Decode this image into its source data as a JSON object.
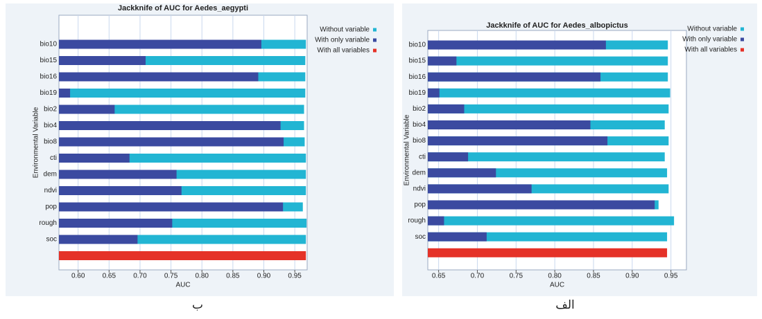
{
  "chart_data": [
    {
      "type": "bar",
      "orientation": "horizontal",
      "title": "Jackknife of AUC for Aedes_aegypti",
      "xlabel": "AUC",
      "ylabel": "Environmental Variable",
      "caption": "ب",
      "categories": [
        "bio10",
        "bio15",
        "bio16",
        "bio19",
        "bio2",
        "bio4",
        "bio8",
        "cti",
        "dem",
        "ndvi",
        "pop",
        "rough",
        "soc",
        null
      ],
      "series": [
        {
          "name": "Without variable",
          "color": "#22b5d3",
          "values": [
            0.968,
            0.967,
            0.967,
            0.967,
            0.965,
            0.965,
            0.966,
            0.968,
            0.968,
            0.968,
            0.963,
            0.969,
            0.968,
            null
          ]
        },
        {
          "name": "With only variable",
          "color": "#3b4aa0",
          "values": [
            0.896,
            0.709,
            0.891,
            0.587,
            0.659,
            0.927,
            0.932,
            0.683,
            0.759,
            0.767,
            0.931,
            0.752,
            0.696,
            null
          ]
        },
        {
          "name": "With all variables",
          "color": "#e53228",
          "values": [
            null,
            null,
            null,
            null,
            null,
            null,
            null,
            null,
            null,
            null,
            null,
            null,
            null,
            0.968
          ]
        }
      ],
      "xlim": [
        0.569,
        0.97
      ],
      "xticks": [
        {
          "value": 0.6,
          "label": "0.60"
        },
        0.65,
        {
          "value": 0.7,
          "label": "0.70"
        },
        0.75,
        {
          "value": 0.8,
          "label": "0.80"
        },
        0.85,
        {
          "value": 0.9,
          "label": "0.90"
        },
        0.95
      ],
      "grid": true,
      "legend": "outside-right"
    },
    {
      "type": "bar",
      "orientation": "horizontal",
      "title": "Jackknife of AUC for Aedes_albopictus",
      "xlabel": "AUC",
      "ylabel": "Environmental Variable",
      "caption": "الف",
      "categories": [
        "bio10",
        "bio15",
        "bio16",
        "bio19",
        "bio2",
        "bio4",
        "bio8",
        "cti",
        "dem",
        "ndvi",
        "pop",
        "rough",
        "soc",
        null
      ],
      "series": [
        {
          "name": "Without variable",
          "color": "#22b5d3",
          "values": [
            0.946,
            0.946,
            0.946,
            0.949,
            0.947,
            0.942,
            0.947,
            0.942,
            0.945,
            0.947,
            0.934,
            0.954,
            0.945,
            null
          ]
        },
        {
          "name": "With only variable",
          "color": "#3b4aa0",
          "values": [
            0.866,
            0.673,
            0.859,
            0.651,
            0.683,
            0.846,
            0.868,
            0.688,
            0.724,
            0.77,
            0.929,
            0.657,
            0.712,
            null
          ]
        },
        {
          "name": "With all variables",
          "color": "#e53228",
          "values": [
            null,
            null,
            null,
            null,
            null,
            null,
            null,
            null,
            null,
            null,
            null,
            null,
            null,
            0.945
          ]
        }
      ],
      "xlim": [
        0.636,
        0.97
      ],
      "xticks": [
        0.65,
        {
          "value": 0.7,
          "label": "0.70"
        },
        0.75,
        {
          "value": 0.8,
          "label": "0.80"
        },
        0.85,
        {
          "value": 0.9,
          "label": "0.90"
        },
        0.95
      ],
      "grid": true,
      "legend": "outside-right"
    }
  ]
}
